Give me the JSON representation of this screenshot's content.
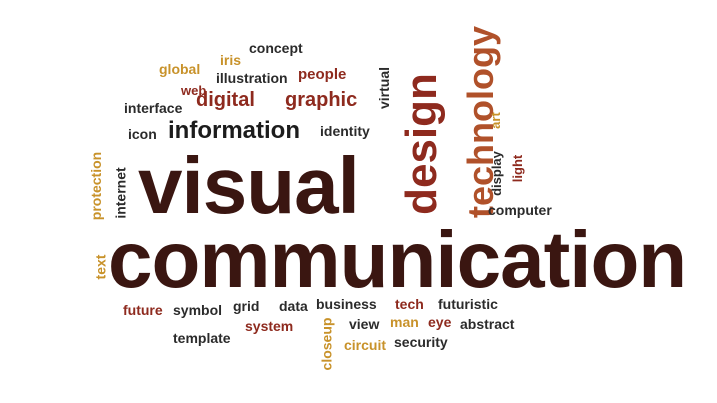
{
  "words": {
    "concept": "concept",
    "global": "global",
    "iris": "iris",
    "illustration": "illustration",
    "people": "people",
    "web": "web",
    "virtual": "virtual",
    "interface": "interface",
    "digital": "digital",
    "graphic": "graphic",
    "design": "design",
    "technology": "technology",
    "icon": "icon",
    "information": "information",
    "identity": "identity",
    "art": "art",
    "protection": "protection",
    "internet": "internet",
    "visual": "visual",
    "display": "display",
    "light": "light",
    "computer": "computer",
    "text": "text",
    "communication": "communication",
    "future": "future",
    "symbol": "symbol",
    "grid": "grid",
    "data": "data",
    "business": "business",
    "tech": "tech",
    "futuristic": "futuristic",
    "system": "system",
    "closeup": "closeup",
    "view": "view",
    "man": "man",
    "eye": "eye",
    "abstract": "abstract",
    "template": "template",
    "circuit": "circuit",
    "security": "security"
  },
  "colors": {
    "dark": "#3a1611",
    "maroon": "#5a1a14",
    "red": "#8e2a1e",
    "brown": "#b0512a",
    "gold": "#c8922a",
    "black": "#1c1c1c"
  }
}
